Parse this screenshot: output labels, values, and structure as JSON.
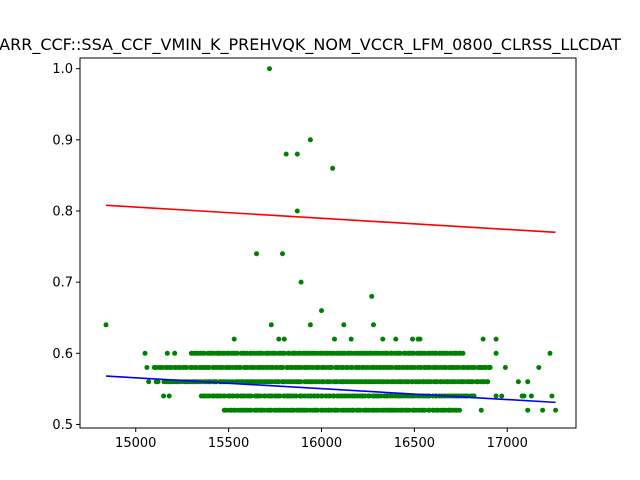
{
  "chart_data": {
    "type": "scatter",
    "title": "ARR_CCF::SSA_CCF_VMIN_K_PREHVQK_NOM_VCCR_LFM_0800_CLRSS_LLCDAT",
    "xlabel": "",
    "ylabel": "",
    "xlim": [
      14700,
      17370
    ],
    "ylim": [
      0.495,
      1.015
    ],
    "xticks": [
      15000,
      15500,
      16000,
      16500,
      17000
    ],
    "yticks": [
      0.5,
      0.6,
      0.7,
      0.8,
      0.9,
      1.0
    ],
    "ytick_labels": [
      "0.5",
      "0.6",
      "0.7",
      "0.8",
      "0.9",
      "1.0"
    ],
    "grid": false,
    "colors": {
      "points": "#008000",
      "upper_line": "#ff0000",
      "lower_line": "#0000ff"
    },
    "series": [
      {
        "points": [
          [
            14840,
            0.64
          ],
          [
            15720,
            1.0
          ],
          [
            15940,
            0.9
          ],
          [
            15810,
            0.88
          ],
          [
            15870,
            0.88
          ],
          [
            16060,
            0.86
          ],
          [
            15870,
            0.8
          ],
          [
            15650,
            0.74
          ],
          [
            15790,
            0.74
          ],
          [
            15890,
            0.7
          ],
          [
            16000,
            0.66
          ],
          [
            16270,
            0.68
          ],
          [
            15730,
            0.64
          ],
          [
            15940,
            0.64
          ],
          [
            16120,
            0.64
          ],
          [
            16280,
            0.64
          ],
          [
            15530,
            0.62
          ],
          [
            15770,
            0.62
          ],
          [
            15800,
            0.62
          ],
          [
            16070,
            0.62
          ],
          [
            16160,
            0.62
          ],
          [
            16330,
            0.62
          ],
          [
            16400,
            0.62
          ],
          [
            16490,
            0.62
          ],
          [
            16520,
            0.62
          ],
          [
            16530,
            0.62
          ],
          [
            16870,
            0.62
          ],
          [
            16940,
            0.62
          ],
          [
            17230,
            0.6
          ],
          [
            17170,
            0.58
          ],
          [
            17060,
            0.56
          ],
          [
            17110,
            0.56
          ],
          [
            17080,
            0.54
          ],
          [
            17130,
            0.54
          ],
          [
            17090,
            0.54
          ],
          [
            17240,
            0.54
          ],
          [
            17110,
            0.52
          ],
          [
            17190,
            0.52
          ],
          [
            17260,
            0.52
          ],
          [
            16940,
            0.54
          ],
          [
            16970,
            0.54
          ],
          [
            16860,
            0.52
          ],
          [
            15150,
            0.54
          ],
          [
            15180,
            0.54
          ],
          [
            15050,
            0.6
          ],
          [
            15060,
            0.58
          ],
          [
            15070,
            0.56
          ],
          [
            15110,
            0.56
          ],
          [
            15120,
            0.56
          ],
          [
            15170,
            0.6
          ],
          [
            15210,
            0.6
          ],
          [
            16940,
            0.6
          ],
          [
            16990,
            0.58
          ],
          [
            16860,
            0.58
          ],
          [
            16890,
            0.56
          ]
        ]
      }
    ],
    "dense_bands": [
      {
        "y": 0.6,
        "x_from": 15300,
        "x_to": 16770
      },
      {
        "y": 0.58,
        "x_from": 15100,
        "x_to": 16920
      },
      {
        "y": 0.56,
        "x_from": 15150,
        "x_to": 16900
      },
      {
        "y": 0.54,
        "x_from": 15350,
        "x_to": 16830
      },
      {
        "y": 0.52,
        "x_from": 15480,
        "x_to": 16750
      }
    ],
    "fit_lines": [
      {
        "name": "upper",
        "x": [
          14840,
          17260
        ],
        "y": [
          0.808,
          0.77
        ]
      },
      {
        "name": "lower",
        "x": [
          14840,
          17260
        ],
        "y": [
          0.568,
          0.531
        ]
      }
    ]
  }
}
